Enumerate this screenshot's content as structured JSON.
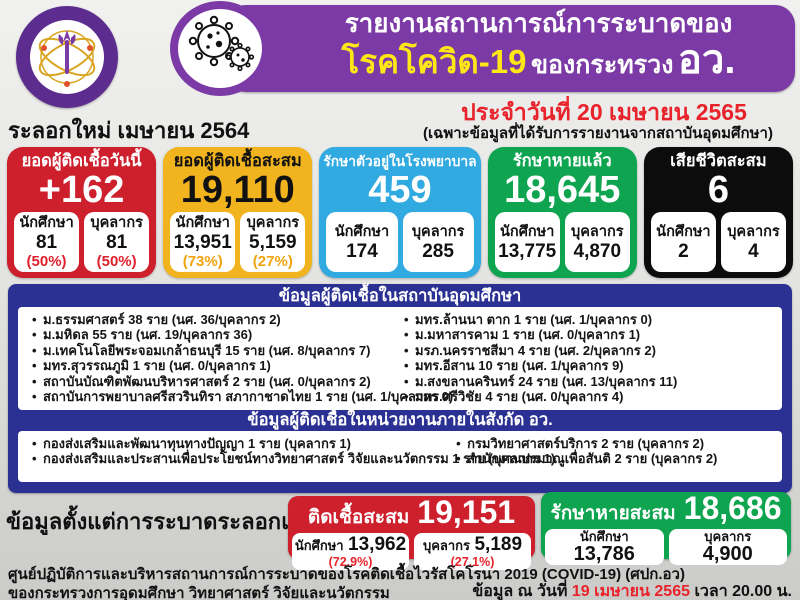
{
  "header": {
    "title_line1": "รายงานสถานการณ์การระบาดของ",
    "covid_label": "โรคโควิด-19",
    "ministry_prefix": "ของกระทรวง",
    "ministry_abbr": "อว.",
    "report_date": "ประจำวันที่ 20 เมษายน 2565",
    "report_note": "(เฉพาะข้อมูลที่ได้รับการรายงานจากสถาบันอุดมศึกษา)",
    "wave_label": "ระลอกใหม่ เมษายน 2564",
    "banner_color": "#7b3aa5",
    "logo_icon": "mhesi-seal",
    "virus_icon": "coronavirus"
  },
  "stat_cards": [
    {
      "title": "ยอดผู้ติดเชื้อวันนี้",
      "value": "+162",
      "color": "#ce1f2d",
      "text_color": "#ffffff",
      "percent_color": "#e0202c",
      "subs": [
        {
          "label": "นักศึกษา",
          "value": "81",
          "percent": "(50%)"
        },
        {
          "label": "บุคลากร",
          "value": "81",
          "percent": "(50%)"
        }
      ]
    },
    {
      "title": "ยอดผู้ติดเชื้อสะสม",
      "value": "19,110",
      "color": "#f1b41f",
      "text_color": "#111111",
      "percent_color": "#efa30f",
      "subs": [
        {
          "label": "นักศึกษา",
          "value": "13,951",
          "percent": "(73%)"
        },
        {
          "label": "บุคลากร",
          "value": "5,159",
          "percent": "(27%)"
        }
      ]
    },
    {
      "title": "รักษาตัวอยู่ในโรงพยาบาล",
      "value": "459",
      "color": "#31a9e1",
      "text_color": "#ffffff",
      "percent_color": "#31a9e1",
      "subs": [
        {
          "label": "นักศึกษา",
          "value": "174"
        },
        {
          "label": "บุคลากร",
          "value": "285"
        }
      ]
    },
    {
      "title": "รักษาหายแล้ว",
      "value": "18,645",
      "color": "#0fa44f",
      "text_color": "#ffffff",
      "percent_color": "#0fa44f",
      "subs": [
        {
          "label": "นักศึกษา",
          "value": "13,775"
        },
        {
          "label": "บุคลากร",
          "value": "4,870"
        }
      ]
    },
    {
      "title": "เสียชีวิตสะสม",
      "value": "6",
      "color": "#0c0c0c",
      "text_color": "#ffffff",
      "percent_color": "#0c0c0c",
      "subs": [
        {
          "label": "นักศึกษา",
          "value": "2"
        },
        {
          "label": "บุคลากร",
          "value": "4"
        }
      ]
    }
  ],
  "sections": {
    "container_color": "#2b3192",
    "universities": {
      "title": "ข้อมูลผู้ติดเชื้อในสถาบันอุดมศึกษา",
      "left": [
        "ม.ธรรมศาสตร์ 38 ราย (นศ. 36/บุคลากร 2)",
        "ม.มหิดล 55 ราย (นศ. 19/บุคลากร 36)",
        "ม.เทคโนโลยีพระจอมเกล้าธนบุรี 15 ราย (นศ. 8/บุคลากร 7)",
        "มทร.สุวรรณภูมิ 1 ราย (นศ. 0/บุคลากร 1)",
        "สถาบันบัณฑิตพัฒนบริหารศาสตร์ 2 ราย (นศ. 0/บุคลากร 2)",
        "สถาบันการพยาบาลศรีสวรินทิรา สภากาชาดไทย 1 ราย (นศ. 1/บุคลากร 0)"
      ],
      "right": [
        "มทร.ล้านนา ตาก 1 ราย (นศ. 1/บุคลากร 0)",
        "ม.มหาสารคาม 1 ราย (นศ. 0/บุคลากร 1)",
        "มรภ.นครราชสีมา 4 ราย (นศ. 2/บุคลากร 2)",
        "มทร.อีสาน 10 ราย (นศ. 1/บุคลากร 9)",
        "ม.สงขลานครินทร์ 24 ราย (นศ. 13/บุคลากร 11)",
        "มทร.ศรีวิชัย 4 ราย (นศ. 0/บุคลากร 4)"
      ]
    },
    "agencies": {
      "title": "ข้อมูลผู้ติดเชื้อในหน่วยงานภายในสังกัด อว.",
      "left": [
        "กองส่งเสริมและพัฒนาทุนทางปัญญา 1 ราย (บุคลากร 1)",
        "กองส่งเสริมและประสานเพื่อประโยชน์ทางวิทยาศาสตร์ วิจัยและนวัตกรรม 1 ราย (บุคลากร 1)"
      ],
      "right": [
        "กรมวิทยาศาสตร์บริการ 2 ราย (บุคลากร 2)",
        "สำนักงานปรมาณูเพื่อสันติ 2 ราย (บุคลากร 2)"
      ]
    }
  },
  "first_wave": {
    "label": "ข้อมูลตั้งแต่การระบาดระลอกแรก",
    "infected": {
      "title": "ติดเชื้อสะสม",
      "value": "19,151",
      "color": "#ce1f2d",
      "subs": [
        {
          "label": "นักศึกษา",
          "value": "13,962",
          "percent": "(72.9%)"
        },
        {
          "label": "บุคลากร",
          "value": "5,189",
          "percent": "(27.1%)"
        }
      ]
    },
    "recovered": {
      "title": "รักษาหายสะสม",
      "value": "18,686",
      "color": "#0fa44f",
      "subs": [
        {
          "label": "นักศึกษา",
          "value": "13,786"
        },
        {
          "label": "บุคลากร",
          "value": "4,900"
        }
      ]
    }
  },
  "footer": {
    "line1": "ศูนย์ปฏิบัติการและบริหารสถานการณ์การระบาดของโรคติดเชื้อไวรัสโคโรนา 2019 (COVID-19) (ศปก.อว)",
    "line2": "ของกระทรวงการอุดมศึกษา วิทยาศาสตร์ วิจัยและนวัตกรรม",
    "asof_prefix": "ข้อมูล ณ วันที่ ",
    "asof_date": "19 เมษายน 2565",
    "asof_suffix": " เวลา 20.00 น."
  }
}
